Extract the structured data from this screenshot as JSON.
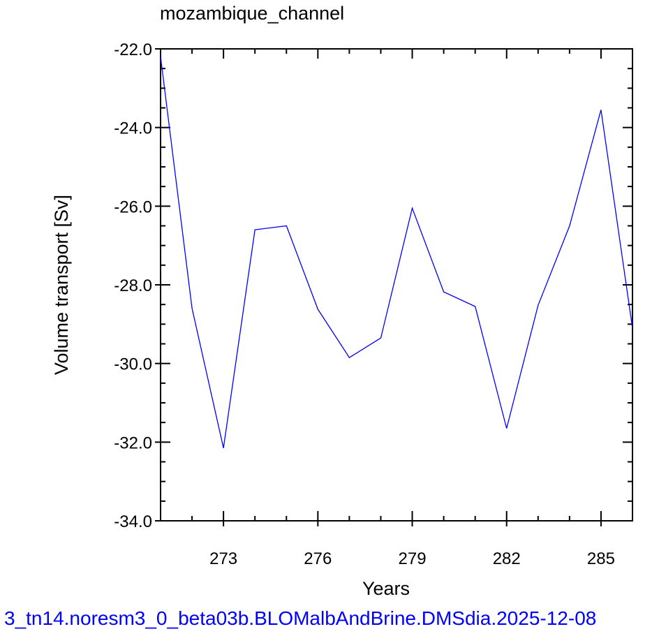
{
  "chart_data": {
    "type": "line",
    "title": "mozambique_channel",
    "xlabel": "Years",
    "ylabel": "Volume transport [Sv]",
    "xlim": [
      271,
      286
    ],
    "ylim": [
      -34.0,
      -22.0
    ],
    "x_ticks": [
      273,
      276,
      279,
      282,
      285
    ],
    "y_ticks": [
      -22.0,
      -24.0,
      -26.0,
      -28.0,
      -30.0,
      -32.0,
      -34.0
    ],
    "series": [
      {
        "color": "#0000ff",
        "x": [
          271,
          272,
          273,
          274,
          275,
          276,
          277,
          278,
          279,
          280,
          281,
          282,
          283,
          284,
          285,
          286
        ],
        "y": [
          -22.2,
          -28.6,
          -32.15,
          -26.6,
          -26.5,
          -28.62,
          -29.85,
          -29.35,
          -26.05,
          -28.18,
          -28.55,
          -31.65,
          -28.52,
          -26.5,
          -23.55,
          -29.1
        ]
      }
    ],
    "grid": false,
    "footer": "3_tn14.noresm3_0_beta03b.BLOMalbAndBrine.DMSdia.2025-12-08"
  }
}
